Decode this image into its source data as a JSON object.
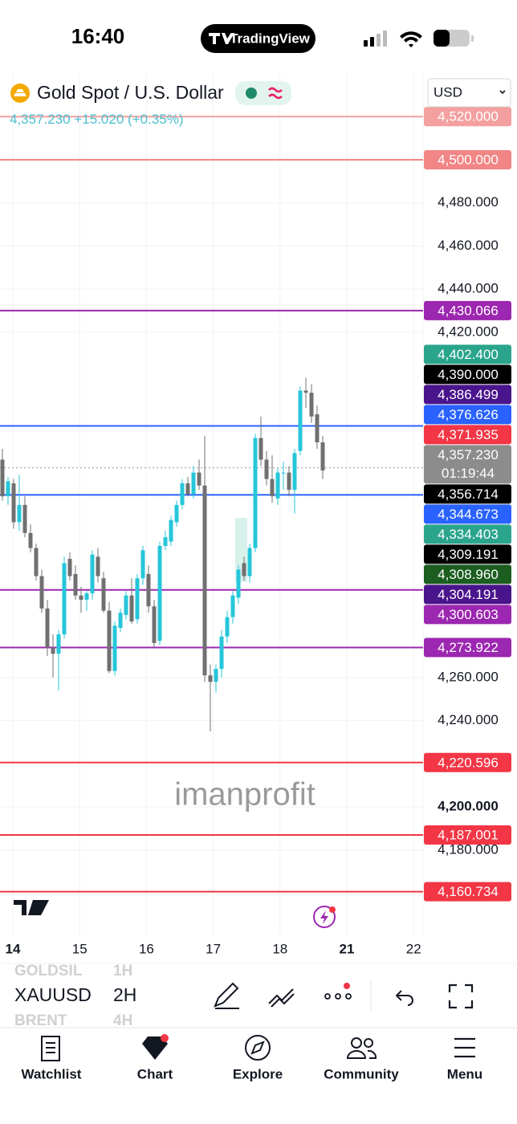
{
  "status_bar": {
    "time": "16:40",
    "app": "TradingView"
  },
  "header": {
    "symbol_name": "Gold Spot / U.S. Dollar",
    "price": "4,357.230",
    "change": "+15.020",
    "change_percent": "(+0.35%)",
    "currency": "USD"
  },
  "chart_data": {
    "type": "candlestick",
    "ylim": [
      4140.5,
      4539.8
    ],
    "yticks": [
      {
        "value": 4480,
        "label": "4,480.000"
      },
      {
        "value": 4460,
        "label": "4,460.000"
      },
      {
        "value": 4440,
        "label": "4,440.000"
      },
      {
        "value": 4420,
        "label": "4,420.000"
      },
      {
        "value": 4260,
        "label": "4,260.000"
      },
      {
        "value": 4240,
        "label": "4,240.000"
      },
      {
        "value": 4200,
        "label": "4,200.000",
        "bold": true
      },
      {
        "value": 4180,
        "label": "4,180.000"
      }
    ],
    "x_labels": [
      {
        "text": "14",
        "bold": true
      },
      {
        "text": "15"
      },
      {
        "text": "16"
      },
      {
        "text": "17"
      },
      {
        "text": "18"
      },
      {
        "text": "21",
        "bold": true
      },
      {
        "text": "22"
      }
    ],
    "up_color": "#26c6da",
    "down_color": "#707070",
    "candles": [
      [
        4361,
        4366,
        4342,
        4344
      ],
      [
        4344,
        4353,
        4340,
        4351
      ],
      [
        4350,
        4352,
        4329,
        4332
      ],
      [
        4332,
        4354,
        4328,
        4340
      ],
      [
        4340,
        4344,
        4325,
        4327
      ],
      [
        4327,
        4331,
        4318,
        4320
      ],
      [
        4320,
        4322,
        4305,
        4307
      ],
      [
        4307,
        4310,
        4290,
        4292
      ],
      [
        4292,
        4296,
        4270,
        4274
      ],
      [
        4274,
        4280,
        4260,
        4271
      ],
      [
        4271,
        4282,
        4254,
        4280
      ],
      [
        4280,
        4316,
        4278,
        4313
      ],
      [
        4315,
        4318,
        4305,
        4307
      ],
      [
        4308,
        4312,
        4296,
        4298
      ],
      [
        4298,
        4302,
        4290,
        4296
      ],
      [
        4296,
        4300,
        4291,
        4299
      ],
      [
        4299,
        4319,
        4296,
        4317
      ],
      [
        4316,
        4320,
        4304,
        4307
      ],
      [
        4306,
        4309,
        4290,
        4291
      ],
      [
        4291,
        4295,
        4262,
        4263
      ],
      [
        4263,
        4286,
        4261,
        4284
      ],
      [
        4283,
        4292,
        4281,
        4290
      ],
      [
        4289,
        4300,
        4287,
        4298
      ],
      [
        4298,
        4306,
        4285,
        4286
      ],
      [
        4287,
        4308,
        4285,
        4306
      ],
      [
        4306,
        4321,
        4303,
        4319
      ],
      [
        4308,
        4312,
        4290,
        4293
      ],
      [
        4293,
        4296,
        4274,
        4276
      ],
      [
        4277,
        4323,
        4275,
        4321
      ],
      [
        4321,
        4328,
        4319,
        4325
      ],
      [
        4323,
        4335,
        4321,
        4333
      ],
      [
        4332,
        4342,
        4330,
        4340
      ],
      [
        4340,
        4352,
        4338,
        4350
      ],
      [
        4350,
        4353,
        4344,
        4345
      ],
      [
        4345,
        4358,
        4343,
        4355
      ],
      [
        4355,
        4361,
        4347,
        4349
      ],
      [
        4349,
        4372,
        4258,
        4261
      ],
      [
        4261,
        4266,
        4235,
        4258
      ],
      [
        4258,
        4266,
        4253,
        4264
      ],
      [
        4264,
        4282,
        4260,
        4279
      ],
      [
        4279,
        4291,
        4276,
        4288
      ],
      [
        4288,
        4300,
        4285,
        4298
      ],
      [
        4297,
        4312,
        4294,
        4310
      ],
      [
        4313,
        4316,
        4305,
        4307
      ],
      [
        4307,
        4322,
        4304,
        4320
      ],
      [
        4320,
        4373,
        4318,
        4371
      ],
      [
        4371,
        4381,
        4358,
        4361
      ],
      [
        4361,
        4365,
        4349,
        4352
      ],
      [
        4352,
        4363,
        4341,
        4344
      ],
      [
        4343,
        4357,
        4340,
        4355
      ],
      [
        4355,
        4360,
        4347,
        4355
      ],
      [
        4355,
        4358,
        4344,
        4347
      ],
      [
        4347,
        4366,
        4336,
        4364
      ],
      [
        4365,
        4395,
        4363,
        4393
      ],
      [
        4393,
        4399,
        4385,
        4392
      ],
      [
        4392,
        4396,
        4378,
        4381
      ],
      [
        4382,
        4386,
        4366,
        4369
      ],
      [
        4369,
        4372,
        4352,
        4356
      ]
    ],
    "levels": [
      {
        "value": 4520,
        "label": "4,520.000",
        "color": "#f4a0a0",
        "line": "solid"
      },
      {
        "value": 4500,
        "label": "4,500.000",
        "color": "#f28585",
        "line": "solid"
      },
      {
        "value": 4430.066,
        "label": "4,430.066",
        "color": "#9c27b0",
        "line": "solid"
      },
      {
        "value": 4402.4,
        "label": "4,402.400",
        "color": "#2aa58c"
      },
      {
        "value": 4390,
        "label": "4,390.000",
        "color": "#000000"
      },
      {
        "value": 4386.499,
        "label": "4,386.499",
        "color": "#4a148c"
      },
      {
        "value": 4376.626,
        "label": "4,376.626",
        "color": "#2962ff",
        "line": "solid"
      },
      {
        "value": 4371.935,
        "label": "4,371.935",
        "color": "#f23645"
      },
      {
        "value": 4357.23,
        "label": "4,357.230",
        "color": "#8c8c8c",
        "line": "dotted",
        "countdown": "01:19:44"
      },
      {
        "value": 4356.714,
        "label": "4,356.714",
        "color": "#000000"
      },
      {
        "value": 4344.673,
        "label": "4,344.673",
        "color": "#2962ff",
        "line": "solid"
      },
      {
        "value": 4334.403,
        "label": "4,334.403",
        "color": "#2aa58c"
      },
      {
        "value": 4309.191,
        "label": "4,309.191",
        "color": "#000000"
      },
      {
        "value": 4308.96,
        "label": "4,308.960",
        "color": "#1b5e20"
      },
      {
        "value": 4304.191,
        "label": "4,304.191",
        "color": "#4a148c"
      },
      {
        "value": 4300.603,
        "label": "4,300.603",
        "color": "#9c27b0",
        "line": "solid"
      },
      {
        "value": 4273.922,
        "label": "4,273.922",
        "color": "#9c27b0",
        "line": "solid"
      },
      {
        "value": 4220.596,
        "label": "4,220.596",
        "color": "#f23645",
        "line": "solid"
      },
      {
        "value": 4187.001,
        "label": "4,187.001",
        "color": "#f23645",
        "line": "solid"
      },
      {
        "value": 4160.734,
        "label": "4,160.734",
        "color": "#f23645",
        "line": "solid"
      }
    ],
    "watermark": "imanprofit"
  },
  "toolbar": {
    "symbols": [
      "GOLDSIL",
      "XAUUSD",
      "BRENT"
    ],
    "intervals": [
      "1H",
      "2H",
      "4H"
    ]
  },
  "tabs": [
    "Watchlist",
    "Chart",
    "Explore",
    "Community",
    "Menu"
  ]
}
